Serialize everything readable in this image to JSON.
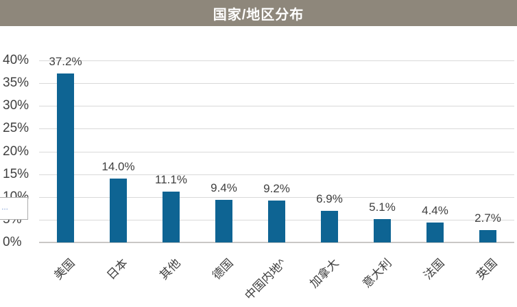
{
  "header": {
    "title": "国家/地区分布"
  },
  "colors": {
    "header_bg": "#8E877B",
    "header_text": "#FFFFFF",
    "bar": "#0E6493",
    "gridline": "#D9D9D9",
    "baseline": "#C9C7C5",
    "axis_text": "#3F3F3F",
    "tooltip_border": "#ABABAB",
    "tooltip_text": "#4472C4"
  },
  "overlay": {
    "clipped_tooltip_text": "…"
  },
  "chart_data": {
    "type": "bar",
    "title": "国家/地区分布",
    "categories": [
      "美国",
      "日本",
      "其他",
      "德国",
      "中国内地^",
      "加拿大",
      "意大利",
      "法国",
      "英国"
    ],
    "values": [
      37.2,
      14.0,
      11.1,
      9.4,
      9.2,
      6.9,
      5.1,
      4.4,
      2.7
    ],
    "value_labels": [
      "37.2%",
      "14.0%",
      "11.1%",
      "9.4%",
      "9.2%",
      "6.9%",
      "5.1%",
      "4.4%",
      "2.7%"
    ],
    "xlabel": "",
    "ylabel": "",
    "ylim": [
      0,
      40
    ],
    "ytick_values": [
      0,
      5,
      10,
      15,
      20,
      25,
      30,
      35,
      40
    ],
    "ytick_labels": [
      "0%",
      "5%",
      "10%",
      "15%",
      "20%",
      "25%",
      "30%",
      "35%",
      "40%"
    ],
    "grid": true,
    "legend": false,
    "bar_color": "#0E6493"
  }
}
